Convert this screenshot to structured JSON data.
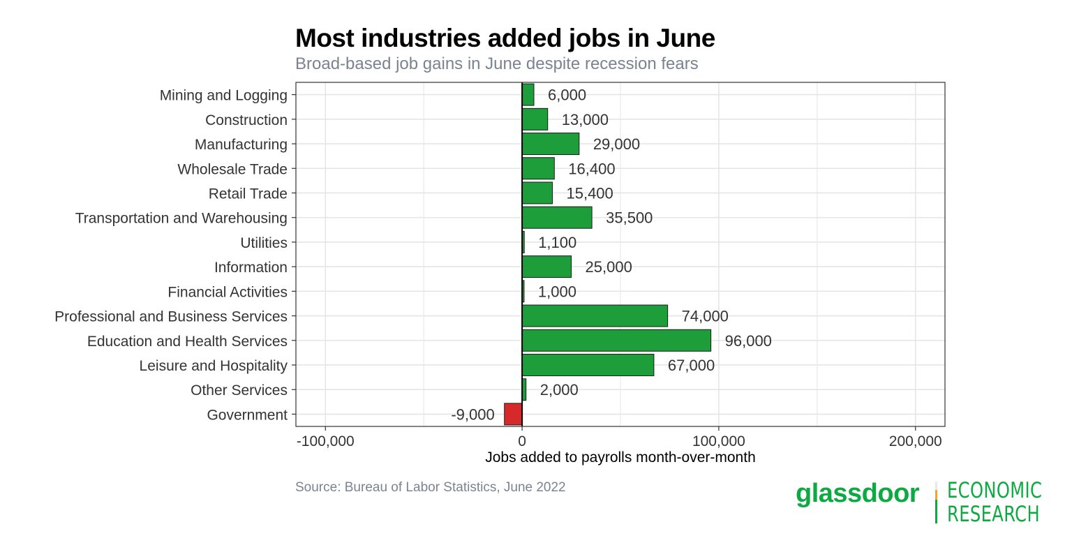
{
  "header": {
    "title": "Most industries added jobs in June",
    "subtitle": "Broad-based job gains in June despite recession fears"
  },
  "footer": {
    "source": "Source: Bureau of Labor Statistics, June 2022"
  },
  "logo": {
    "wordmark": "glassdoor",
    "line1": "ECONOMIC",
    "line2": "RESEARCH",
    "colors": {
      "brand": "#0caa41",
      "divider_top": "#e8e8e8",
      "divider_mid": "#f5a623",
      "divider_bottom": "#0caa41"
    }
  },
  "colors": {
    "positive": "#1e9e3a",
    "negative": "#d62a2a",
    "bar_outline": "#1a1a1a",
    "grid": "#e5e5e5",
    "text": "#333333"
  },
  "chart_data": {
    "type": "bar",
    "orientation": "horizontal",
    "categories": [
      "Mining and Logging",
      "Construction",
      "Manufacturing",
      "Wholesale Trade",
      "Retail Trade",
      "Transportation and Warehousing",
      "Utilities",
      "Information",
      "Financial Activities",
      "Professional and Business Services",
      "Education and Health Services",
      "Leisure and Hospitality",
      "Other Services",
      "Government"
    ],
    "values": [
      6000,
      13000,
      29000,
      16400,
      15400,
      35500,
      1100,
      25000,
      1000,
      74000,
      96000,
      67000,
      2000,
      -9000
    ],
    "data_labels": [
      "6,000",
      "13,000",
      "29,000",
      "16,400",
      "15,400",
      "35,500",
      "1,100",
      "25,000",
      "1,000",
      "74,000",
      "96,000",
      "67,000",
      "2,000",
      "-9,000"
    ],
    "xlabel": "Jobs added to payrolls month-over-month",
    "ylabel": "",
    "xlim": [
      -115000,
      215000
    ],
    "x_ticks": [
      -100000,
      0,
      100000,
      200000
    ],
    "x_tick_labels": [
      "-100,000",
      "0",
      "100,000",
      "200,000"
    ],
    "grid": true,
    "legend": "none"
  }
}
